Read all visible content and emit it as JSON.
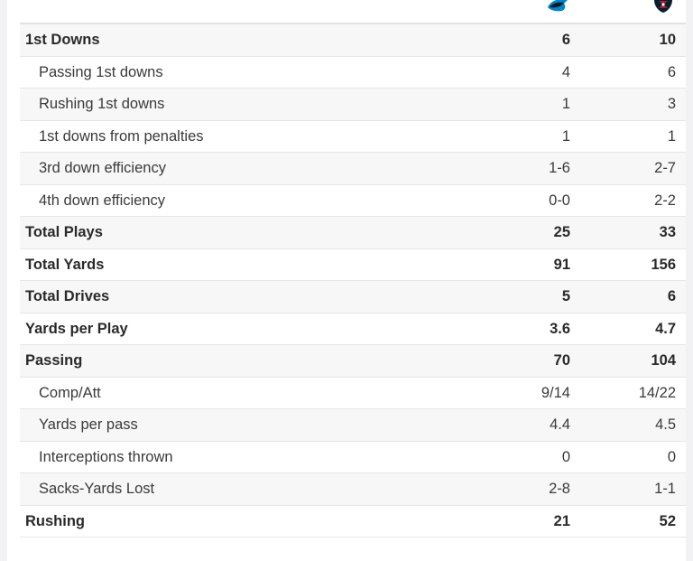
{
  "teams": {
    "away": {
      "logo_icon": "panthers-logo-icon",
      "color": "#0085CA"
    },
    "home": {
      "logo_icon": "texans-logo-icon",
      "color": "#A71930"
    }
  },
  "stats": [
    {
      "label": "1st Downs",
      "away": "6",
      "home": "10",
      "level": "main"
    },
    {
      "label": "Passing 1st downs",
      "away": "4",
      "home": "6",
      "level": "sub"
    },
    {
      "label": "Rushing 1st downs",
      "away": "1",
      "home": "3",
      "level": "sub"
    },
    {
      "label": "1st downs from penalties",
      "away": "1",
      "home": "1",
      "level": "sub"
    },
    {
      "label": "3rd down efficiency",
      "away": "1-6",
      "home": "2-7",
      "level": "sub"
    },
    {
      "label": "4th down efficiency",
      "away": "0-0",
      "home": "2-2",
      "level": "sub"
    },
    {
      "label": "Total Plays",
      "away": "25",
      "home": "33",
      "level": "main"
    },
    {
      "label": "Total Yards",
      "away": "91",
      "home": "156",
      "level": "main"
    },
    {
      "label": "Total Drives",
      "away": "5",
      "home": "6",
      "level": "main"
    },
    {
      "label": "Yards per Play",
      "away": "3.6",
      "home": "4.7",
      "level": "main"
    },
    {
      "label": "Passing",
      "away": "70",
      "home": "104",
      "level": "main"
    },
    {
      "label": "Comp/Att",
      "away": "9/14",
      "home": "14/22",
      "level": "sub"
    },
    {
      "label": "Yards per pass",
      "away": "4.4",
      "home": "4.5",
      "level": "sub"
    },
    {
      "label": "Interceptions thrown",
      "away": "0",
      "home": "0",
      "level": "sub"
    },
    {
      "label": "Sacks-Yards Lost",
      "away": "2-8",
      "home": "1-1",
      "level": "sub"
    },
    {
      "label": "Rushing",
      "away": "21",
      "home": "52",
      "level": "main"
    }
  ]
}
